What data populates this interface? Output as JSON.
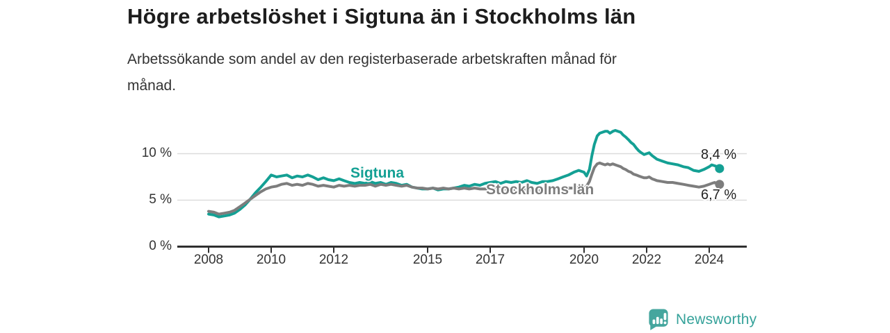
{
  "header": {
    "title": "Högre arbetslöshet i Sigtuna än i Stockholms län",
    "subtitle_line1": "Arbetssökande som andel av den registerbaserade arbetskraften månad för",
    "subtitle_line2": "månad."
  },
  "chart_data": {
    "type": "line",
    "title": "Högre arbetslöshet i Sigtuna än i Stockholms län",
    "subtitle": "Arbetssökande som andel av den registerbaserade arbetskraften månad för månad.",
    "unit": "%",
    "grid": "horizontal-only",
    "legend_position": "inline-labels",
    "x_axis": {
      "range": [
        2007.0,
        2025.2
      ],
      "ticks": [
        2008,
        2010,
        2012,
        2015,
        2017,
        2020,
        2022,
        2024
      ],
      "tick_labels": [
        "2008",
        "2010",
        "2012",
        "2015",
        "2017",
        "2020",
        "2022",
        "2024"
      ]
    },
    "y_axis": {
      "range": [
        0,
        13.5
      ],
      "ticks": [
        0,
        5,
        10
      ],
      "tick_labels": [
        "0 %",
        "5 %",
        "10 %"
      ],
      "gridlines": [
        5,
        10
      ]
    },
    "series": [
      {
        "name": "Sigtuna",
        "label": "Sigtuna",
        "color": "#14a094",
        "end_value": 8.4,
        "end_label": "8,4 %",
        "points": [
          [
            2008.0,
            3.5
          ],
          [
            2008.17,
            3.4
          ],
          [
            2008.33,
            3.2
          ],
          [
            2008.5,
            3.3
          ],
          [
            2008.67,
            3.4
          ],
          [
            2008.83,
            3.6
          ],
          [
            2009.0,
            4.0
          ],
          [
            2009.17,
            4.5
          ],
          [
            2009.33,
            5.1
          ],
          [
            2009.5,
            5.8
          ],
          [
            2009.67,
            6.4
          ],
          [
            2009.83,
            7.0
          ],
          [
            2010.0,
            7.7
          ],
          [
            2010.17,
            7.5
          ],
          [
            2010.33,
            7.6
          ],
          [
            2010.5,
            7.7
          ],
          [
            2010.67,
            7.4
          ],
          [
            2010.83,
            7.6
          ],
          [
            2011.0,
            7.5
          ],
          [
            2011.17,
            7.7
          ],
          [
            2011.33,
            7.5
          ],
          [
            2011.5,
            7.2
          ],
          [
            2011.67,
            7.4
          ],
          [
            2011.83,
            7.2
          ],
          [
            2012.0,
            7.1
          ],
          [
            2012.17,
            7.3
          ],
          [
            2012.33,
            7.1
          ],
          [
            2012.5,
            6.9
          ],
          [
            2012.67,
            6.8
          ],
          [
            2012.83,
            6.9
          ],
          [
            2013.0,
            6.8
          ],
          [
            2013.17,
            7.0
          ],
          [
            2013.33,
            6.8
          ],
          [
            2013.5,
            6.9
          ],
          [
            2013.67,
            6.7
          ],
          [
            2013.83,
            6.9
          ],
          [
            2014.0,
            6.8
          ],
          [
            2014.17,
            6.6
          ],
          [
            2014.33,
            6.7
          ],
          [
            2014.5,
            6.4
          ],
          [
            2014.67,
            6.3
          ],
          [
            2014.83,
            6.2
          ],
          [
            2015.0,
            6.2
          ],
          [
            2015.17,
            6.3
          ],
          [
            2015.33,
            6.1
          ],
          [
            2015.5,
            6.2
          ],
          [
            2015.67,
            6.2
          ],
          [
            2015.83,
            6.3
          ],
          [
            2016.0,
            6.4
          ],
          [
            2016.17,
            6.6
          ],
          [
            2016.33,
            6.5
          ],
          [
            2016.5,
            6.7
          ],
          [
            2016.67,
            6.6
          ],
          [
            2016.83,
            6.8
          ],
          [
            2017.0,
            6.9
          ],
          [
            2017.17,
            7.0
          ],
          [
            2017.33,
            6.8
          ],
          [
            2017.5,
            7.0
          ],
          [
            2017.67,
            6.9
          ],
          [
            2017.83,
            7.0
          ],
          [
            2018.0,
            6.9
          ],
          [
            2018.17,
            7.1
          ],
          [
            2018.33,
            6.9
          ],
          [
            2018.5,
            6.8
          ],
          [
            2018.67,
            7.0
          ],
          [
            2018.83,
            7.0
          ],
          [
            2019.0,
            7.1
          ],
          [
            2019.17,
            7.3
          ],
          [
            2019.33,
            7.5
          ],
          [
            2019.5,
            7.7
          ],
          [
            2019.67,
            8.0
          ],
          [
            2019.83,
            8.2
          ],
          [
            2020.0,
            8.0
          ],
          [
            2020.08,
            7.6
          ],
          [
            2020.17,
            8.3
          ],
          [
            2020.25,
            9.8
          ],
          [
            2020.33,
            11.0
          ],
          [
            2020.42,
            11.9
          ],
          [
            2020.5,
            12.2
          ],
          [
            2020.58,
            12.3
          ],
          [
            2020.67,
            12.4
          ],
          [
            2020.75,
            12.4
          ],
          [
            2020.83,
            12.2
          ],
          [
            2020.92,
            12.4
          ],
          [
            2021.0,
            12.5
          ],
          [
            2021.08,
            12.4
          ],
          [
            2021.17,
            12.3
          ],
          [
            2021.25,
            12.0
          ],
          [
            2021.33,
            11.8
          ],
          [
            2021.42,
            11.5
          ],
          [
            2021.5,
            11.2
          ],
          [
            2021.58,
            11.0
          ],
          [
            2021.67,
            10.6
          ],
          [
            2021.75,
            10.3
          ],
          [
            2021.83,
            10.1
          ],
          [
            2021.92,
            9.9
          ],
          [
            2022.0,
            10.0
          ],
          [
            2022.08,
            10.1
          ],
          [
            2022.17,
            9.8
          ],
          [
            2022.25,
            9.6
          ],
          [
            2022.33,
            9.4
          ],
          [
            2022.5,
            9.2
          ],
          [
            2022.67,
            9.0
          ],
          [
            2022.83,
            8.9
          ],
          [
            2023.0,
            8.8
          ],
          [
            2023.17,
            8.6
          ],
          [
            2023.33,
            8.5
          ],
          [
            2023.5,
            8.2
          ],
          [
            2023.67,
            8.1
          ],
          [
            2023.83,
            8.3
          ],
          [
            2024.0,
            8.6
          ],
          [
            2024.08,
            8.8
          ],
          [
            2024.17,
            8.7
          ],
          [
            2024.25,
            8.6
          ],
          [
            2024.33,
            8.4
          ]
        ]
      },
      {
        "name": "Stockholms län",
        "label": "Stockholms län",
        "color": "#7d7d7d",
        "end_value": 6.7,
        "end_label": "6,7 %",
        "points": [
          [
            2008.0,
            3.8
          ],
          [
            2008.17,
            3.7
          ],
          [
            2008.33,
            3.5
          ],
          [
            2008.5,
            3.6
          ],
          [
            2008.67,
            3.7
          ],
          [
            2008.83,
            3.9
          ],
          [
            2009.0,
            4.3
          ],
          [
            2009.17,
            4.7
          ],
          [
            2009.33,
            5.1
          ],
          [
            2009.5,
            5.5
          ],
          [
            2009.67,
            5.9
          ],
          [
            2009.83,
            6.2
          ],
          [
            2010.0,
            6.4
          ],
          [
            2010.17,
            6.5
          ],
          [
            2010.33,
            6.7
          ],
          [
            2010.5,
            6.8
          ],
          [
            2010.67,
            6.6
          ],
          [
            2010.83,
            6.7
          ],
          [
            2011.0,
            6.6
          ],
          [
            2011.17,
            6.8
          ],
          [
            2011.33,
            6.7
          ],
          [
            2011.5,
            6.5
          ],
          [
            2011.67,
            6.6
          ],
          [
            2011.83,
            6.5
          ],
          [
            2012.0,
            6.4
          ],
          [
            2012.17,
            6.6
          ],
          [
            2012.33,
            6.5
          ],
          [
            2012.5,
            6.6
          ],
          [
            2012.67,
            6.5
          ],
          [
            2012.83,
            6.6
          ],
          [
            2013.0,
            6.6
          ],
          [
            2013.17,
            6.7
          ],
          [
            2013.33,
            6.5
          ],
          [
            2013.5,
            6.7
          ],
          [
            2013.67,
            6.6
          ],
          [
            2013.83,
            6.7
          ],
          [
            2014.0,
            6.6
          ],
          [
            2014.17,
            6.5
          ],
          [
            2014.33,
            6.6
          ],
          [
            2014.5,
            6.4
          ],
          [
            2014.67,
            6.3
          ],
          [
            2014.83,
            6.3
          ],
          [
            2015.0,
            6.2
          ],
          [
            2015.17,
            6.3
          ],
          [
            2015.33,
            6.2
          ],
          [
            2015.5,
            6.3
          ],
          [
            2015.67,
            6.2
          ],
          [
            2015.83,
            6.3
          ],
          [
            2016.0,
            6.2
          ],
          [
            2016.17,
            6.3
          ],
          [
            2016.33,
            6.2
          ],
          [
            2016.5,
            6.3
          ],
          [
            2016.67,
            6.2
          ],
          [
            2016.83,
            6.2
          ],
          [
            2017.0,
            6.2
          ],
          [
            2017.17,
            6.3
          ],
          [
            2017.33,
            6.1
          ],
          [
            2017.5,
            6.2
          ],
          [
            2017.67,
            6.1
          ],
          [
            2017.83,
            6.2
          ],
          [
            2018.0,
            6.1
          ],
          [
            2018.17,
            6.2
          ],
          [
            2018.33,
            6.0
          ],
          [
            2018.5,
            6.1
          ],
          [
            2018.67,
            6.0
          ],
          [
            2018.83,
            6.1
          ],
          [
            2019.0,
            6.1
          ],
          [
            2019.17,
            6.2
          ],
          [
            2019.33,
            6.2
          ],
          [
            2019.5,
            6.3
          ],
          [
            2019.67,
            6.3
          ],
          [
            2019.83,
            6.4
          ],
          [
            2020.0,
            6.3
          ],
          [
            2020.08,
            6.5
          ],
          [
            2020.17,
            7.0
          ],
          [
            2020.25,
            7.8
          ],
          [
            2020.33,
            8.5
          ],
          [
            2020.42,
            8.9
          ],
          [
            2020.5,
            9.0
          ],
          [
            2020.58,
            8.9
          ],
          [
            2020.67,
            8.8
          ],
          [
            2020.75,
            8.9
          ],
          [
            2020.83,
            8.8
          ],
          [
            2020.92,
            8.9
          ],
          [
            2021.0,
            8.8
          ],
          [
            2021.08,
            8.7
          ],
          [
            2021.17,
            8.6
          ],
          [
            2021.25,
            8.4
          ],
          [
            2021.33,
            8.3
          ],
          [
            2021.42,
            8.1
          ],
          [
            2021.5,
            8.0
          ],
          [
            2021.58,
            7.8
          ],
          [
            2021.67,
            7.7
          ],
          [
            2021.75,
            7.6
          ],
          [
            2021.83,
            7.5
          ],
          [
            2021.92,
            7.4
          ],
          [
            2022.0,
            7.4
          ],
          [
            2022.08,
            7.5
          ],
          [
            2022.17,
            7.3
          ],
          [
            2022.25,
            7.2
          ],
          [
            2022.33,
            7.1
          ],
          [
            2022.5,
            7.0
          ],
          [
            2022.67,
            6.9
          ],
          [
            2022.83,
            6.9
          ],
          [
            2023.0,
            6.8
          ],
          [
            2023.17,
            6.7
          ],
          [
            2023.33,
            6.6
          ],
          [
            2023.5,
            6.5
          ],
          [
            2023.67,
            6.4
          ],
          [
            2023.83,
            6.5
          ],
          [
            2024.0,
            6.7
          ],
          [
            2024.08,
            6.8
          ],
          [
            2024.17,
            6.9
          ],
          [
            2024.25,
            6.8
          ],
          [
            2024.33,
            6.7
          ]
        ]
      }
    ],
    "colors": {
      "gridline": "#dcdcdc",
      "axis": "#2f2f2f",
      "tick_text": "#333333",
      "value_text": "#222222"
    }
  },
  "footer": {
    "brand": "Newsworthy",
    "logo_icon": "bar-chart-speech-bubble-icon",
    "logo_color": "#45a69e",
    "brand_color": "#35a29a"
  }
}
